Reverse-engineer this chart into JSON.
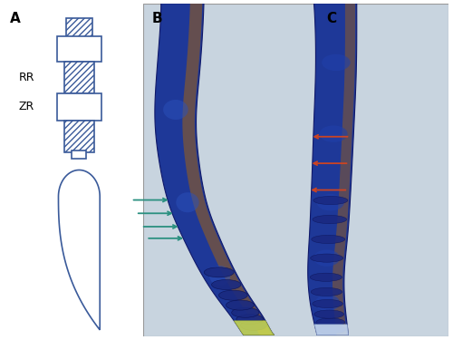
{
  "panel_A_label": "A",
  "panel_B_label": "B",
  "panel_C_label": "C",
  "RR_label": "RR",
  "ZR_label": "ZR",
  "lc": "#2a4a8a",
  "bg_photo": "#c8d4df",
  "root_blue_dark": "#1a2f8a",
  "root_blue_mid": "#2a4aaa",
  "root_blue_light": "#4a6abb",
  "root_brown": "#7a4a20",
  "root_tan": "#c8a878",
  "tip_color": "#d8e8b0",
  "tip_C_color": "#c0d0e8",
  "green_arrow": "#2a9080",
  "red_arrow": "#cc4422",
  "diagram_lc": "#3a5a9a",
  "label_fontsize": 11,
  "rr_zr_fontsize": 9,
  "arrow_lw": 1.3,
  "arrow_ms": 7
}
